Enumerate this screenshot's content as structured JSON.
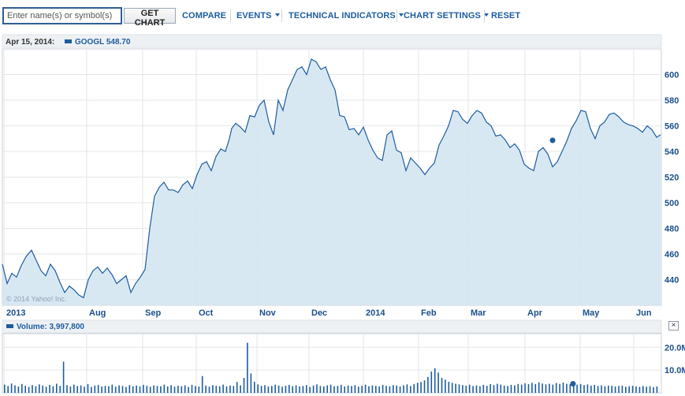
{
  "toolbar": {
    "search_placeholder": "Enter name(s) or symbol(s)",
    "get_chart_label": "GET CHART",
    "compare_label": "COMPARE",
    "events_label": "EVENTS",
    "indicators_label": "TECHNICAL INDICATORS",
    "settings_label": "CHART SETTINGS",
    "reset_label": "RESET"
  },
  "chart_header": {
    "date": "Apr 15, 2014:",
    "symbol_value": "GOOGL 548.70"
  },
  "watermark": "© 2014 Yahoo! Inc.",
  "volume_header": "Volume: 3,997,800",
  "close_label": "×",
  "colors": {
    "line": "#1d5c9e",
    "area": "#d4e6f2",
    "grid": "#e3e6ea",
    "axis_text": "#1a4f8b"
  },
  "chart_data": [
    {
      "type": "area",
      "series": [
        {
          "name": "GOOGL",
          "x": [
            0,
            6,
            12,
            18,
            24,
            30,
            37,
            43,
            49,
            55,
            61,
            67,
            73,
            79,
            85,
            91,
            97,
            103,
            109,
            115,
            121,
            127,
            133,
            139,
            145,
            151,
            157,
            163,
            169,
            175,
            181,
            187,
            193,
            199,
            205,
            211,
            217,
            223,
            229,
            235,
            241,
            247,
            253,
            259,
            265,
            271,
            277,
            283,
            288,
            291,
            296,
            302,
            308,
            314,
            320,
            326,
            332,
            338,
            344,
            350,
            356,
            362,
            368,
            374,
            380,
            386,
            392,
            398,
            404,
            410,
            416,
            422,
            428,
            434,
            440,
            446,
            452,
            458,
            464,
            470,
            476,
            482,
            488,
            494,
            500,
            506,
            512,
            518,
            524,
            530,
            536,
            542,
            548,
            554,
            560,
            566,
            572,
            578,
            584,
            590,
            596,
            602,
            608,
            614,
            620,
            626,
            632,
            638,
            644,
            650,
            656,
            662,
            668,
            674,
            680,
            686,
            692,
            698,
            704,
            710,
            716,
            722,
            728,
            734,
            740,
            746,
            752,
            758,
            764,
            770,
            776,
            782,
            788,
            794,
            800,
            806,
            812,
            818,
            824,
            830,
            835
          ],
          "values": [
            452,
            437,
            445,
            442,
            451,
            458,
            463,
            455,
            447,
            443,
            452,
            447,
            438,
            430,
            435,
            432,
            428,
            426,
            440,
            447,
            450,
            445,
            449,
            444,
            437,
            440,
            443,
            430,
            437,
            442,
            448,
            480,
            505,
            512,
            516,
            510,
            510,
            508,
            514,
            517,
            511,
            522,
            530,
            532,
            525,
            536,
            542,
            540,
            550,
            558,
            562,
            559,
            555,
            568,
            567,
            576,
            580,
            563,
            553,
            580,
            572,
            588,
            596,
            604,
            606,
            600,
            612,
            610,
            604,
            606,
            596,
            588,
            568,
            567,
            557,
            558,
            553,
            559,
            549,
            541,
            535,
            533,
            553,
            556,
            541,
            539,
            525,
            535,
            531,
            527,
            522,
            527,
            531,
            545,
            552,
            560,
            572,
            571,
            565,
            562,
            568,
            572,
            570,
            563,
            560,
            552,
            553,
            549,
            543,
            546,
            541,
            530,
            527,
            525,
            540,
            543,
            538,
            528,
            532,
            540,
            548,
            558,
            564,
            572,
            571,
            558,
            550,
            560,
            563,
            569,
            570,
            567,
            563,
            561,
            560,
            558,
            555,
            560,
            557,
            551,
            553
          ],
          "marker_x": 698,
          "marker_value": 548.7
        }
      ],
      "x_ticks": [
        {
          "label": "2013",
          "x": 5
        },
        {
          "label": "Aug",
          "x": 110
        },
        {
          "label": "Sep",
          "x": 181
        },
        {
          "label": "Oct",
          "x": 249
        },
        {
          "label": "Nov",
          "x": 326
        },
        {
          "label": "Dec",
          "x": 392
        },
        {
          "label": "2014",
          "x": 461
        },
        {
          "label": "Feb",
          "x": 531
        },
        {
          "label": "Mar",
          "x": 594
        },
        {
          "label": "Apr",
          "x": 666
        },
        {
          "label": "May",
          "x": 736
        },
        {
          "label": "Jun",
          "x": 804
        }
      ],
      "y_ticks": [
        440,
        460,
        480,
        500,
        520,
        540,
        560,
        580,
        600
      ],
      "ylim": [
        420,
        620
      ],
      "grid": true
    },
    {
      "type": "bar",
      "series": [
        {
          "name": "Volume",
          "values_m": [
            3.6,
            3.0,
            4.1,
            3.3,
            2.8,
            3.9,
            3.1,
            2.6,
            3.4,
            2.9,
            3.7,
            3.2,
            2.7,
            3.5,
            2.9,
            4.0,
            3.1,
            13.7,
            3.4,
            2.8,
            3.6,
            3.0,
            3.3,
            2.7,
            3.9,
            2.6,
            3.2,
            3.5,
            2.8,
            3.1,
            2.9,
            3.6,
            2.7,
            3.3,
            3.0,
            2.6,
            3.4,
            2.9,
            3.2,
            2.8,
            3.5,
            3.1,
            2.7,
            3.3,
            3.0,
            2.9,
            3.6,
            2.8,
            3.4,
            2.7,
            3.1,
            2.9,
            3.3,
            2.6,
            3.5,
            3.0,
            2.8,
            7.4,
            3.2,
            2.7,
            3.4,
            3.1,
            2.9,
            3.6,
            2.8,
            3.2,
            3.0,
            4.8,
            3.3,
            6.6,
            22.0,
            8.5,
            4.9,
            3.7,
            3.1,
            3.4,
            2.8,
            3.0,
            3.6,
            3.2,
            2.7,
            3.1,
            3.5,
            2.9,
            3.3,
            2.8,
            3.0,
            3.4,
            2.6,
            3.2,
            3.7,
            3.0,
            2.8,
            3.3,
            3.6,
            2.9,
            3.1,
            3.5,
            2.8,
            3.2,
            3.0,
            3.4,
            2.7,
            3.1,
            3.6,
            2.9,
            3.3,
            3.0,
            2.8,
            3.5,
            3.1,
            2.9,
            3.4,
            3.2,
            2.8,
            3.3,
            3.7,
            3.0,
            3.9,
            4.4,
            4.8,
            5.5,
            7.0,
            9.4,
            10.8,
            8.9,
            6.6,
            5.8,
            4.9,
            4.4,
            4.0,
            3.7,
            3.4,
            3.2,
            3.6,
            3.0,
            3.3,
            2.9,
            3.5,
            3.1,
            3.8,
            3.4,
            4.0,
            3.6,
            3.2,
            3.0,
            3.5,
            3.3,
            3.9,
            3.6,
            4.2,
            3.8,
            4.4,
            3.9,
            4.6,
            4.1,
            3.7,
            4.0,
            3.6,
            4.3,
            3.9,
            4.5,
            4.0,
            3.8,
            4.1,
            3.6,
            3.9,
            3.4,
            3.7,
            3.2,
            3.5,
            3.0,
            3.3,
            2.9,
            3.2,
            3.1,
            2.8,
            3.0,
            3.2,
            2.7,
            2.9,
            3.1,
            2.8,
            2.6,
            3.0,
            2.7,
            2.9,
            2.5,
            2.8
          ],
          "marker_index": 164,
          "marker_value_m": 4.0
        }
      ],
      "y_ticks": [
        {
          "label": "10.0M",
          "value": 10
        },
        {
          "label": "20.0M",
          "value": 20
        }
      ],
      "ylim": [
        0,
        26
      ],
      "grid": true
    }
  ]
}
